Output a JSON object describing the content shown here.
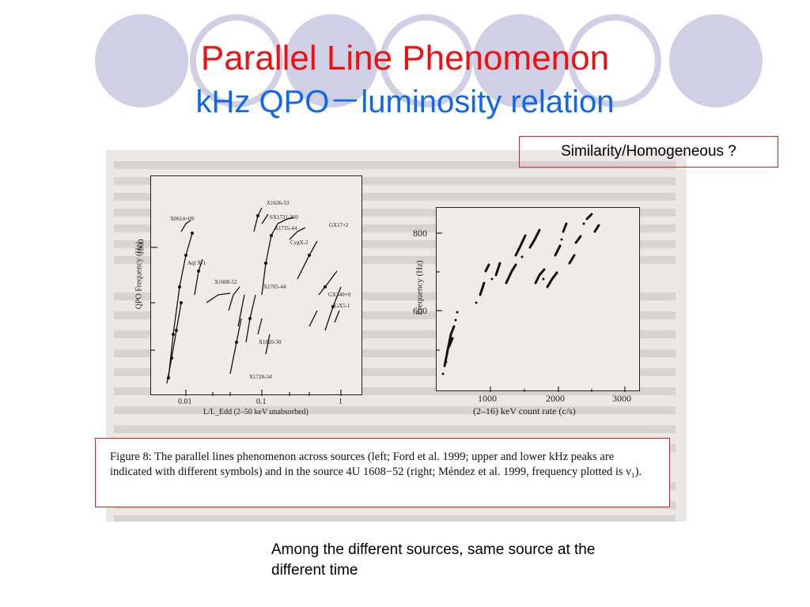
{
  "slide": {
    "title_line1": "Parallel Line Phenomenon",
    "title_line2": "kHz QPO－luminosity relation",
    "callout": "Similarity/Homogeneous ?",
    "caption": "Figure 8:  The parallel lines phenomenon across sources (left; Ford et al.  1999; upper and lower kHz peaks are indicated with different symbols) and in the source 4U 1608−52 (right; Méndez et al. 1999, frequency plotted is ν₁).",
    "note": "Among the different sources, same source  at the different time",
    "colors": {
      "title_red": "#ee1111",
      "title_blue": "#1166ee",
      "box_red": "#e02020",
      "circle": "#cfd0e6"
    }
  },
  "figure": {
    "left_plot": {
      "ylabel": "QPO Frequency (Hz)",
      "xlabel": "L/L_Edd (2–50 keV unabsorbed)",
      "yticks": [
        "1000"
      ],
      "xticks": [
        "0.01",
        "0.1",
        "1"
      ],
      "source_labels": [
        "X0614+09",
        "X1636-53",
        "SX1731-260",
        "X1735-44",
        "GX17+2",
        "CygX-2",
        "Aql X-1",
        "X1608-52",
        "X1705-44",
        "GX340+0",
        "GX5-1",
        "X1820-30",
        "X1728-34"
      ]
    },
    "right_plot": {
      "ylabel": "Frequency (Hz)",
      "xlabel": "(2–16) keV count rate (c/s)",
      "yticks": [
        "800",
        "600"
      ],
      "xticks": [
        "1000",
        "2000",
        "3000"
      ]
    }
  }
}
